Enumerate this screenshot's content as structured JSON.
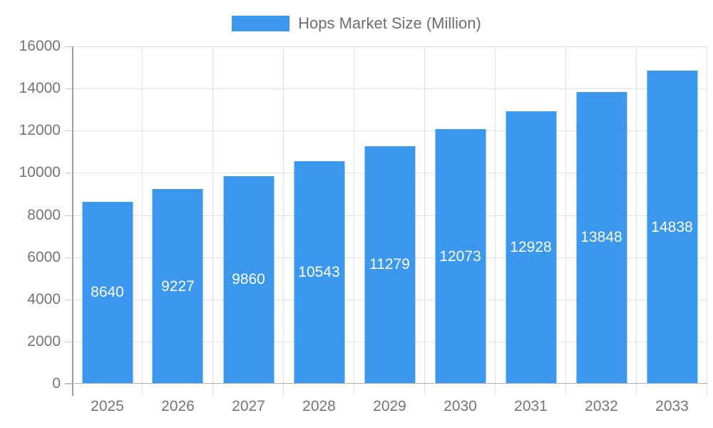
{
  "chart_data": {
    "type": "bar",
    "title": "Hops Market Size (Million)",
    "categories": [
      "2025",
      "2026",
      "2027",
      "2028",
      "2029",
      "2030",
      "2031",
      "2032",
      "2033"
    ],
    "values": [
      8640,
      9227,
      9860,
      10543,
      11279,
      12073,
      12928,
      13848,
      14838
    ],
    "series": [
      {
        "name": "Hops Market Size (Million)",
        "values": [
          8640,
          9227,
          9860,
          10543,
          11279,
          12073,
          12928,
          13848,
          14838
        ]
      }
    ],
    "xlabel": "",
    "ylabel": "",
    "ylim": [
      0,
      16000
    ],
    "yticks": [
      0,
      2000,
      4000,
      6000,
      8000,
      10000,
      12000,
      14000,
      16000
    ],
    "grid": true,
    "legend_position": "top",
    "value_labels_inside_bars": true
  },
  "legend": {
    "label": "Hops Market Size (Million)",
    "swatch_color": "#3B98EC"
  },
  "colors": {
    "background": "#FFFFFF",
    "bar": "#3B98EC",
    "gridline": "#E3E3E3",
    "axis_line": "#9E9E9E",
    "baseline": "#B3B3B3",
    "tick": "#CCCCCC",
    "axis_label_text": "#757575",
    "legend_text": "#6E6E6E",
    "value_label_text": "#FFFFFF"
  }
}
